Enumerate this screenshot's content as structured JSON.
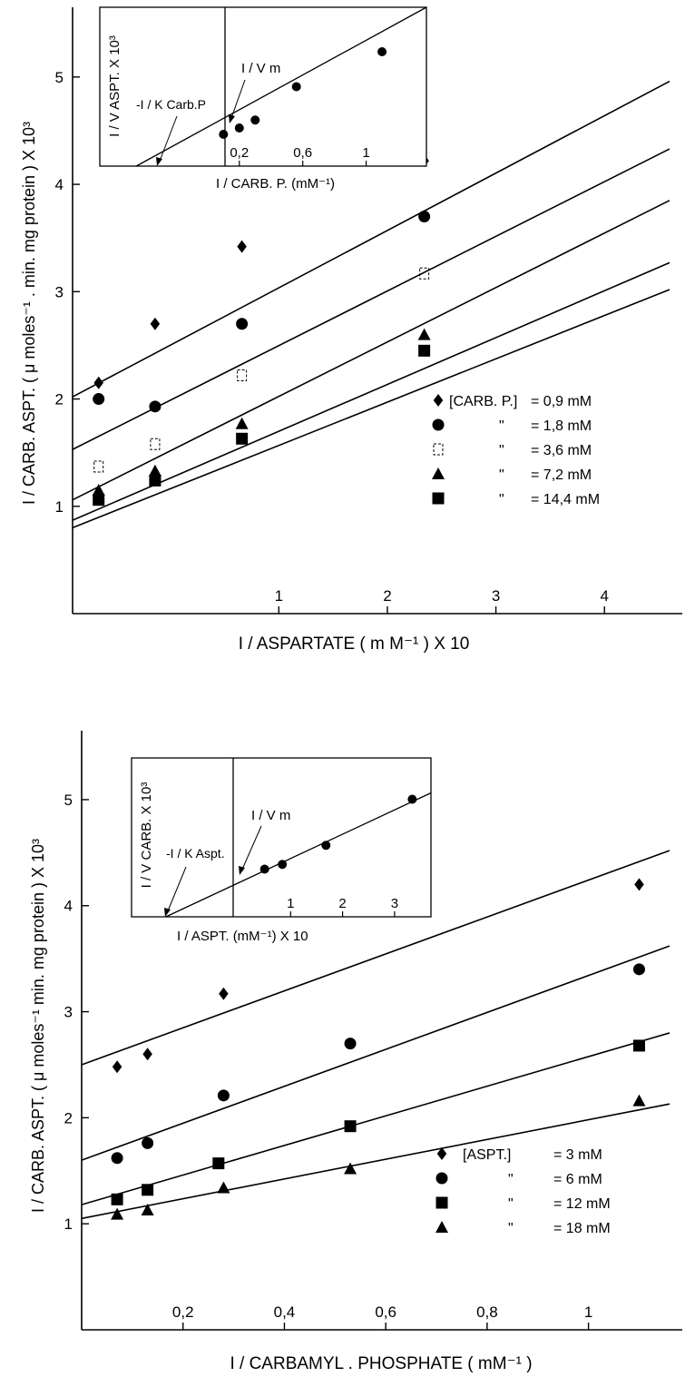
{
  "chart_data": [
    {
      "type": "scatter",
      "title": "",
      "xlabel": "I / ASPARTATE ( m M⁻¹ ) X 10",
      "ylabel": "I / CARB. ASPT. ( μ moles⁻¹ . min. mg protein ) X 10³",
      "xlim": [
        -0.9,
        4.6
      ],
      "ylim": [
        0,
        5.65
      ],
      "x_ticks": [
        1,
        2,
        3,
        4
      ],
      "y_ticks": [
        1,
        2,
        3,
        4,
        5
      ],
      "x_tick_labels": [
        "1",
        "2",
        "3",
        "4"
      ],
      "y_tick_labels": [
        "1",
        "2",
        "3",
        "4",
        "5"
      ],
      "grid": false,
      "legend_position": "right",
      "legend_header": "[CARB. P.]",
      "series": [
        {
          "name": "= 0,9 mM",
          "marker": "diamond",
          "x": [
            -0.66,
            -0.14,
            0.66,
            2.34
          ],
          "y": [
            2.15,
            2.7,
            3.42,
            4.22
          ],
          "fit": [
            [
              -0.9,
              2.02
            ],
            [
              4.6,
              4.96
            ]
          ]
        },
        {
          "name": "= 1,8 mM",
          "marker": "circle",
          "x": [
            -0.66,
            -0.14,
            0.66,
            2.34
          ],
          "y": [
            2.0,
            1.93,
            2.7,
            3.7
          ],
          "fit": [
            [
              -0.9,
              1.53
            ],
            [
              4.6,
              4.33
            ]
          ]
        },
        {
          "name": "= 3,6 mM",
          "marker": "open-square",
          "x": [
            -0.66,
            -0.14,
            0.66,
            2.34
          ],
          "y": [
            1.37,
            1.58,
            2.22,
            3.17
          ],
          "fit": [
            [
              -0.9,
              1.06
            ],
            [
              4.6,
              3.85
            ]
          ]
        },
        {
          "name": "= 7,2 mM",
          "marker": "triangle",
          "x": [
            -0.66,
            -0.14,
            0.66,
            2.34
          ],
          "y": [
            1.15,
            1.33,
            1.77,
            2.6
          ],
          "fit": [
            [
              -0.9,
              0.87
            ],
            [
              4.6,
              3.27
            ]
          ]
        },
        {
          "name": "= 14,4 mM",
          "marker": "square",
          "x": [
            -0.66,
            -0.14,
            0.66,
            2.34
          ],
          "y": [
            1.06,
            1.24,
            1.63,
            2.45
          ],
          "fit": [
            [
              -0.9,
              0.8
            ],
            [
              4.6,
              3.02
            ]
          ]
        }
      ],
      "ditto": [
        "\"",
        "\"",
        "\"",
        "\""
      ],
      "inset": {
        "xlabel": "I / CARB. P. (mM⁻¹)",
        "ylabel": "I / V ASPT. X 10³",
        "x_tick_labels": [
          "0,2",
          "0,6",
          "1"
        ],
        "x_ticks": [
          0.2,
          0.6,
          1.0
        ],
        "xlim": [
          -0.68,
          1.38
        ],
        "ylim": [
          0,
          1.0
        ],
        "points_x": [
          0.1,
          0.2,
          0.3,
          0.56,
          1.1
        ],
        "points_y": [
          0.2,
          0.24,
          0.29,
          0.5,
          0.72
        ],
        "fit": [
          [
            -0.45,
            0.0
          ],
          [
            1.38,
            1.0
          ]
        ],
        "annotations": [
          "I / V m",
          "-I / K Carb.P"
        ]
      }
    },
    {
      "type": "scatter",
      "title": "",
      "xlabel": "I / CARBAMYL . PHOSPHATE ( mM⁻¹ )",
      "ylabel": "I / CARB. ASPT. ( μ moles⁻¹ min. mg protein ) X 10³",
      "xlim": [
        0.0,
        1.16
      ],
      "ylim": [
        0,
        5.65
      ],
      "x_ticks": [
        0.2,
        0.4,
        0.6,
        0.8,
        1.0
      ],
      "y_ticks": [
        1,
        2,
        3,
        4,
        5
      ],
      "x_tick_labels": [
        "0,2",
        "0,4",
        "0,6",
        "0,8",
        "1"
      ],
      "y_tick_labels": [
        "1",
        "2",
        "3",
        "4",
        "5"
      ],
      "grid": false,
      "legend_position": "right",
      "legend_header": "[ASPT.]",
      "series": [
        {
          "name": "= 3 mM",
          "marker": "diamond",
          "x": [
            0.07,
            0.13,
            0.28,
            1.1
          ],
          "y": [
            2.48,
            2.6,
            3.17,
            4.2
          ],
          "fit": [
            [
              0.0,
              2.5
            ],
            [
              1.16,
              4.52
            ]
          ]
        },
        {
          "name": "= 6 mM",
          "marker": "circle",
          "x": [
            0.07,
            0.13,
            0.28,
            0.53,
            1.1
          ],
          "y": [
            1.62,
            1.76,
            2.21,
            2.7,
            3.4
          ],
          "fit": [
            [
              0.0,
              1.6
            ],
            [
              1.16,
              3.62
            ]
          ]
        },
        {
          "name": "= 12 mM",
          "marker": "square",
          "x": [
            0.07,
            0.13,
            0.27,
            0.53,
            1.1
          ],
          "y": [
            1.23,
            1.32,
            1.57,
            1.92,
            2.68
          ],
          "fit": [
            [
              0.0,
              1.18
            ],
            [
              1.16,
              2.8
            ]
          ]
        },
        {
          "name": "= 18 mM",
          "marker": "triangle",
          "x": [
            0.07,
            0.13,
            0.28,
            0.53,
            1.1
          ],
          "y": [
            1.09,
            1.13,
            1.34,
            1.52,
            2.16
          ],
          "fit": [
            [
              0.0,
              1.05
            ],
            [
              1.16,
              2.13
            ]
          ]
        }
      ],
      "ditto": [
        "\"",
        "\"",
        "\""
      ],
      "inset": {
        "xlabel": "I / ASPT. (mM⁻¹) X 10",
        "ylabel": "I / V CARB. X 10³",
        "x_tick_labels": [
          "1",
          "2",
          "3"
        ],
        "x_ticks": [
          1,
          2,
          3
        ],
        "xlim": [
          -2.06,
          3.7
        ],
        "ylim": [
          0,
          1.0
        ],
        "points_x": [
          0.5,
          0.84,
          1.68,
          3.34
        ],
        "points_y": [
          0.3,
          0.33,
          0.45,
          0.74
        ],
        "fit": [
          [
            -1.4,
            0.0
          ],
          [
            3.7,
            0.78
          ]
        ],
        "annotations": [
          "I / V m",
          "-I / K Aspt."
        ]
      }
    }
  ]
}
